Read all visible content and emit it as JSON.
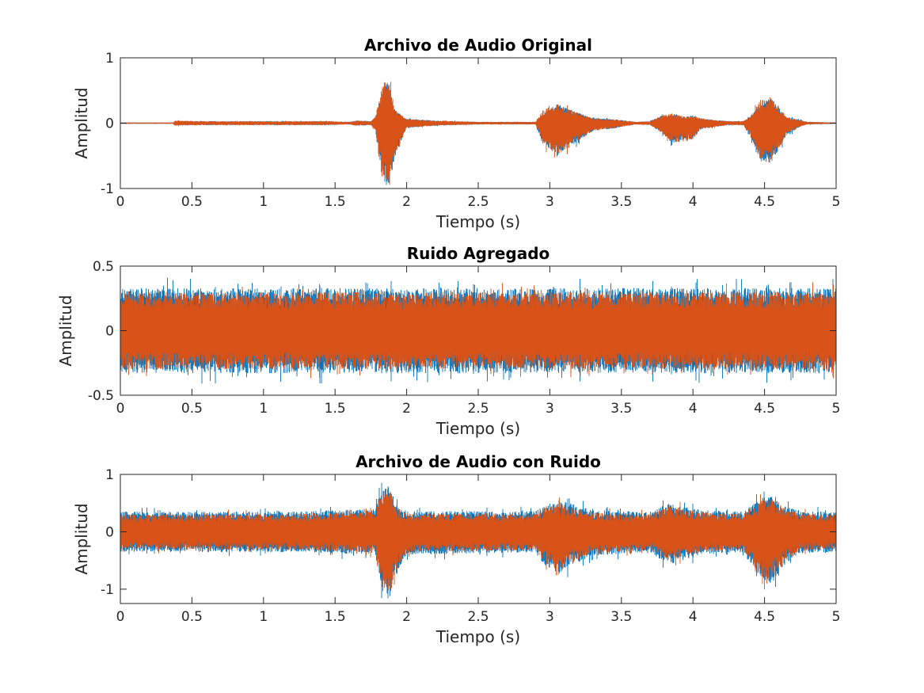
{
  "figure": {
    "colors": {
      "series_1": "#0072BD",
      "series_2": "#D95319",
      "axis": "#262626",
      "background": "#ffffff"
    }
  },
  "chart_data": [
    {
      "type": "line",
      "title": "Archivo de Audio Original",
      "xlabel": "Tiempo (s)",
      "ylabel": "Amplitud",
      "xlim": [
        0,
        5
      ],
      "ylim": [
        -1,
        1
      ],
      "xticks": [
        0,
        0.5,
        1,
        1.5,
        2,
        2.5,
        3,
        3.5,
        4,
        4.5,
        5
      ],
      "xtick_labels": [
        "0",
        "0.5",
        "1",
        "1.5",
        "2",
        "2.5",
        "3",
        "3.5",
        "4",
        "4.5",
        "5"
      ],
      "yticks": [
        -1,
        0,
        1
      ],
      "ytick_labels": [
        "-1",
        "0",
        "1"
      ],
      "grid": false,
      "series": [
        {
          "color": "#0072BD",
          "envelope": {
            "t": [
              0,
              0.37,
              0.38,
              0.6,
              1.3,
              1.45,
              1.6,
              1.65,
              1.75,
              1.78,
              1.82,
              1.85,
              1.88,
              1.92,
              2.0,
              2.2,
              2.5,
              2.9,
              2.95,
              3.05,
              3.15,
              3.3,
              3.45,
              3.6,
              3.7,
              3.78,
              3.85,
              3.95,
              4.0,
              4.05,
              4.15,
              4.25,
              4.35,
              4.4,
              4.48,
              4.55,
              4.65,
              4.75,
              4.8,
              5
            ],
            "max": [
              0.01,
              0.01,
              0.03,
              0.03,
              0.03,
              0.03,
              0.02,
              0.04,
              0.03,
              0.08,
              0.45,
              0.6,
              0.62,
              0.2,
              0.07,
              0.04,
              0.02,
              0.02,
              0.15,
              0.3,
              0.2,
              0.08,
              0.06,
              0.02,
              0.03,
              0.12,
              0.13,
              0.1,
              0.12,
              0.08,
              0.05,
              0.03,
              0.03,
              0.1,
              0.38,
              0.38,
              0.1,
              0.05,
              0.02,
              0.01
            ],
            "min": [
              -0.01,
              -0.01,
              -0.03,
              -0.03,
              -0.03,
              -0.03,
              -0.02,
              -0.04,
              -0.03,
              -0.08,
              -0.7,
              -0.95,
              -1.0,
              -0.5,
              -0.07,
              -0.04,
              -0.02,
              -0.02,
              -0.3,
              -0.5,
              -0.35,
              -0.12,
              -0.08,
              -0.02,
              -0.03,
              -0.15,
              -0.3,
              -0.28,
              -0.25,
              -0.1,
              -0.06,
              -0.03,
              -0.03,
              -0.2,
              -0.6,
              -0.62,
              -0.2,
              -0.05,
              -0.02,
              -0.01
            ]
          }
        },
        {
          "color": "#D95319",
          "envelope": {
            "t": [
              0,
              0.37,
              0.38,
              0.6,
              1.3,
              1.45,
              1.6,
              1.65,
              1.75,
              1.78,
              1.82,
              1.85,
              1.88,
              1.92,
              2.0,
              2.2,
              2.5,
              2.9,
              2.95,
              3.05,
              3.15,
              3.3,
              3.45,
              3.6,
              3.7,
              3.78,
              3.85,
              3.95,
              4.0,
              4.05,
              4.15,
              4.25,
              4.35,
              4.4,
              4.48,
              4.55,
              4.65,
              4.75,
              4.8,
              5
            ],
            "max": [
              0.01,
              0.01,
              0.04,
              0.03,
              0.03,
              0.03,
              0.02,
              0.04,
              0.03,
              0.1,
              0.5,
              0.65,
              0.6,
              0.2,
              0.07,
              0.04,
              0.02,
              0.02,
              0.2,
              0.3,
              0.2,
              0.08,
              0.06,
              0.02,
              0.03,
              0.12,
              0.15,
              0.1,
              0.12,
              0.08,
              0.05,
              0.03,
              0.03,
              0.1,
              0.38,
              0.4,
              0.1,
              0.05,
              0.02,
              0.01
            ],
            "min": [
              -0.01,
              -0.01,
              -0.04,
              -0.03,
              -0.03,
              -0.03,
              -0.02,
              -0.04,
              -0.03,
              -0.1,
              -0.75,
              -1.0,
              -0.95,
              -0.5,
              -0.07,
              -0.04,
              -0.02,
              -0.02,
              -0.3,
              -0.52,
              -0.35,
              -0.12,
              -0.08,
              -0.02,
              -0.03,
              -0.15,
              -0.3,
              -0.28,
              -0.25,
              -0.1,
              -0.06,
              -0.03,
              -0.03,
              -0.2,
              -0.62,
              -0.6,
              -0.2,
              -0.05,
              -0.02,
              -0.01
            ]
          }
        }
      ]
    },
    {
      "type": "line",
      "title": "Ruido Agregado",
      "xlabel": "Tiempo (s)",
      "ylabel": "Amplitud",
      "xlim": [
        0,
        5
      ],
      "ylim": [
        -0.5,
        0.5
      ],
      "xticks": [
        0,
        0.5,
        1,
        1.5,
        2,
        2.5,
        3,
        3.5,
        4,
        4.5,
        5
      ],
      "xtick_labels": [
        "0",
        "0.5",
        "1",
        "1.5",
        "2",
        "2.5",
        "3",
        "3.5",
        "4",
        "4.5",
        "5"
      ],
      "yticks": [
        -0.5,
        0,
        0.5
      ],
      "ytick_labels": [
        "-0.5",
        "0",
        "0.5"
      ],
      "grid": false,
      "series": [
        {
          "color": "#0072BD",
          "envelope": {
            "t": [
              0,
              5
            ],
            "max": [
              0.33,
              0.33
            ],
            "min": [
              -0.33,
              -0.33
            ]
          }
        },
        {
          "color": "#D95319",
          "envelope": {
            "t": [
              0,
              5
            ],
            "max": [
              0.3,
              0.3
            ],
            "min": [
              -0.3,
              -0.3
            ]
          }
        }
      ]
    },
    {
      "type": "line",
      "title": "Archivo de Audio con Ruido",
      "xlabel": "Tiempo (s)",
      "ylabel": "Amplitud",
      "xlim": [
        0,
        5
      ],
      "ylim": [
        -1.25,
        1
      ],
      "xticks": [
        0,
        0.5,
        1,
        1.5,
        2,
        2.5,
        3,
        3.5,
        4,
        4.5,
        5
      ],
      "xtick_labels": [
        "0",
        "0.5",
        "1",
        "1.5",
        "2",
        "2.5",
        "3",
        "3.5",
        "4",
        "4.5",
        "5"
      ],
      "yticks": [
        -1,
        0,
        1
      ],
      "ytick_labels": [
        "-1",
        "0",
        "1"
      ],
      "grid": false,
      "series": [
        {
          "color": "#0072BD",
          "envelope": {
            "t": [
              0,
              1.3,
              1.78,
              1.82,
              1.85,
              1.88,
              1.92,
              2.0,
              2.9,
              2.95,
              3.05,
              3.15,
              3.3,
              3.7,
              3.78,
              3.85,
              3.95,
              4.05,
              4.35,
              4.4,
              4.48,
              4.55,
              4.65,
              4.75,
              5
            ],
            "max": [
              0.35,
              0.36,
              0.4,
              0.7,
              0.8,
              0.82,
              0.5,
              0.36,
              0.36,
              0.45,
              0.55,
              0.5,
              0.38,
              0.35,
              0.45,
              0.5,
              0.45,
              0.38,
              0.36,
              0.45,
              0.6,
              0.62,
              0.45,
              0.37,
              0.35
            ],
            "min": [
              -0.35,
              -0.36,
              -0.4,
              -1.0,
              -1.15,
              -1.2,
              -0.8,
              -0.4,
              -0.36,
              -0.55,
              -0.75,
              -0.6,
              -0.42,
              -0.36,
              -0.5,
              -0.55,
              -0.5,
              -0.4,
              -0.36,
              -0.55,
              -0.85,
              -0.9,
              -0.55,
              -0.38,
              -0.35
            ]
          }
        },
        {
          "color": "#D95319",
          "envelope": {
            "t": [
              0,
              1.3,
              1.78,
              1.82,
              1.85,
              1.88,
              1.92,
              2.0,
              2.9,
              2.95,
              3.05,
              3.15,
              3.3,
              3.7,
              3.78,
              3.85,
              3.95,
              4.05,
              4.35,
              4.4,
              4.48,
              4.55,
              4.65,
              4.75,
              5
            ],
            "max": [
              0.3,
              0.32,
              0.36,
              0.65,
              0.75,
              0.78,
              0.45,
              0.32,
              0.32,
              0.4,
              0.5,
              0.45,
              0.34,
              0.31,
              0.4,
              0.45,
              0.4,
              0.34,
              0.32,
              0.4,
              0.55,
              0.58,
              0.4,
              0.33,
              0.3
            ],
            "min": [
              -0.3,
              -0.32,
              -0.36,
              -0.95,
              -1.1,
              -1.12,
              -0.75,
              -0.36,
              -0.32,
              -0.5,
              -0.7,
              -0.55,
              -0.38,
              -0.32,
              -0.45,
              -0.5,
              -0.45,
              -0.36,
              -0.32,
              -0.5,
              -0.8,
              -0.82,
              -0.5,
              -0.34,
              -0.3
            ]
          }
        }
      ]
    }
  ]
}
